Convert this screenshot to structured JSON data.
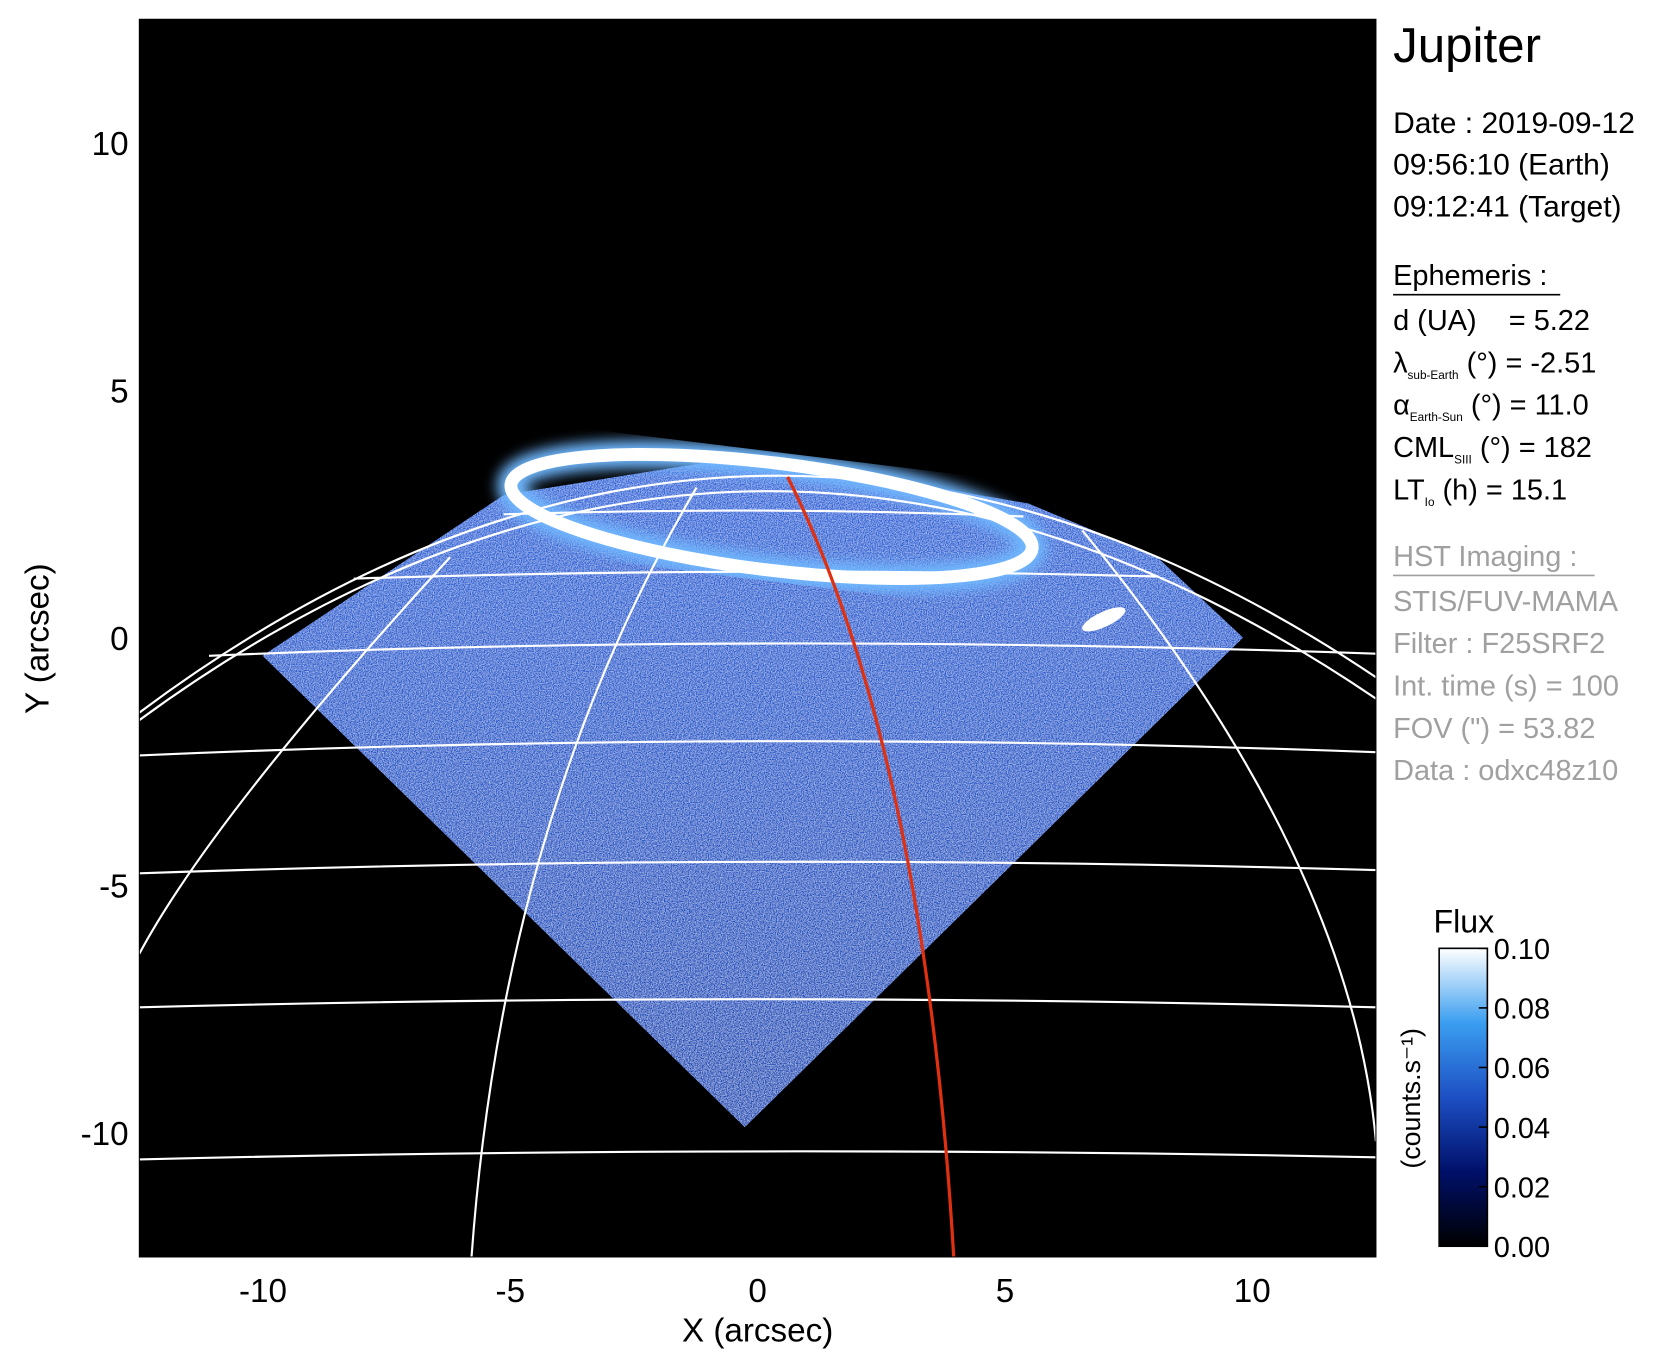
{
  "chart_data": {
    "type": "image",
    "xlabel": "X (arcsec)",
    "ylabel": "Y (arcsec)",
    "xlim": [
      -12.5,
      12.5
    ],
    "ylim": [
      -12.5,
      12.5
    ],
    "xticks": [
      -10,
      -5,
      0,
      5,
      10
    ],
    "yticks": [
      -10,
      -5,
      0,
      5,
      10
    ],
    "panel": {
      "title": "Jupiter",
      "date": [
        "Date : 2019-09-12",
        "09:56:10 (Earth)",
        "09:12:41 (Target)"
      ],
      "ephemeris_heading": "Ephemeris :",
      "ephemeris": [
        {
          "text": "d (UA)    = 5.22"
        },
        {
          "symbol": "λ",
          "subscript": "sub-Earth",
          "text": " (°) = -2.51"
        },
        {
          "symbol": "α",
          "subscript": "Earth-Sun",
          "text": " (°) = 11.0"
        },
        {
          "symbol": "CML",
          "subscript": "SIII",
          "text": " (°) = 182"
        },
        {
          "symbol": "LT",
          "subscript": "Io",
          "text": " (h) = 15.1"
        }
      ],
      "imaging_heading": "HST Imaging :",
      "imaging": [
        "STIS/FUV-MAMA",
        "Filter : F25SRF2",
        "Int. time (s) = 100",
        "FOV (\") = 53.82",
        "Data : odxc48z10"
      ]
    },
    "colorbar": {
      "title": "Flux",
      "label": "(counts.s⁻¹)",
      "lim": [
        0,
        0.1
      ],
      "ticks": [
        {
          "value": 0,
          "label": "0.00"
        },
        {
          "value": 0.02,
          "label": "0.02"
        },
        {
          "value": 0.04,
          "label": "0.04"
        },
        {
          "value": 0.06,
          "label": "0.06"
        },
        {
          "value": 0.08,
          "label": "0.08"
        },
        {
          "value": 0.1,
          "label": "0.10"
        }
      ]
    }
  }
}
